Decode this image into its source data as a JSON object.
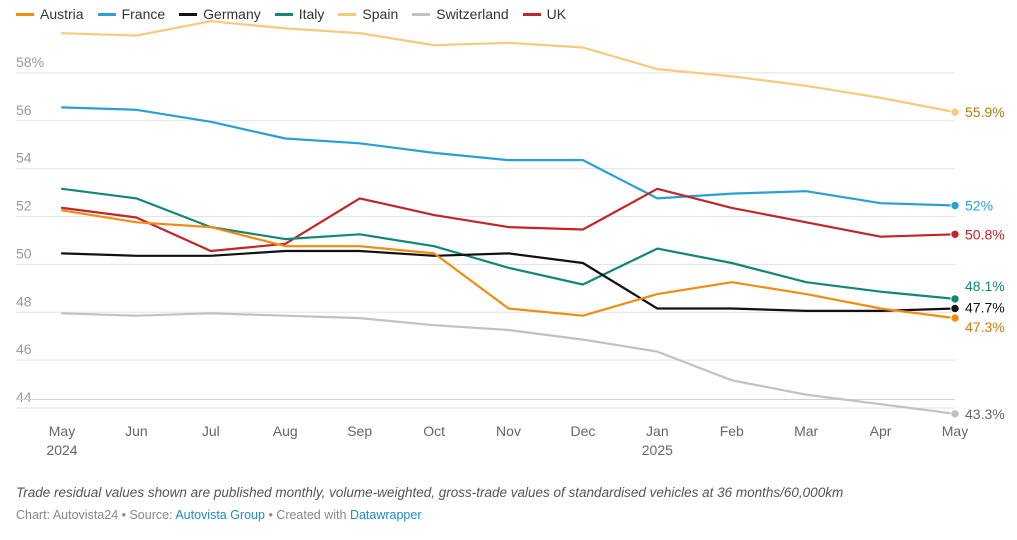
{
  "legend": [
    {
      "name": "Austria",
      "color": "#f28c0f"
    },
    {
      "name": "France",
      "color": "#27a1d4"
    },
    {
      "name": "Germany",
      "color": "#111111"
    },
    {
      "name": "Italy",
      "color": "#138675"
    },
    {
      "name": "Spain",
      "color": "#f7c978"
    },
    {
      "name": "Switzerland",
      "color": "#c1c1c1"
    },
    {
      "name": "UK",
      "color": "#c22528"
    }
  ],
  "chart_data": {
    "type": "line",
    "x_ticks": [
      "May",
      "Jun",
      "Jul",
      "Aug",
      "Sep",
      "Oct",
      "Nov",
      "Dec",
      "Jan",
      "Feb",
      "Mar",
      "Apr",
      "May"
    ],
    "x_years": {
      "0": "2024",
      "8": "2025"
    },
    "y_ticks": [
      "58%",
      "56",
      "54",
      "52",
      "50",
      "48",
      "46",
      "44"
    ],
    "ylim": [
      43,
      59.5
    ],
    "grid": true,
    "legend_position": "top-left",
    "series": [
      {
        "name": "Spain",
        "color": "#f7c978",
        "end_label": "55.9%",
        "label_color": "#b07b16",
        "values": [
          59.2,
          59.1,
          59.7,
          59.4,
          59.2,
          58.7,
          58.8,
          58.6,
          57.7,
          57.4,
          57.0,
          56.5,
          55.9
        ]
      },
      {
        "name": "France",
        "color": "#27a1d4",
        "end_label": "52%",
        "label_color": "#27a1d4",
        "values": [
          56.1,
          56.0,
          55.5,
          54.8,
          54.6,
          54.2,
          53.9,
          53.9,
          52.3,
          52.5,
          52.6,
          52.1,
          52.0
        ]
      },
      {
        "name": "UK",
        "color": "#c22528",
        "end_label": "50.8%",
        "label_color": "#c22528",
        "values": [
          51.9,
          51.5,
          50.1,
          50.4,
          52.3,
          51.6,
          51.1,
          51.0,
          52.7,
          51.9,
          51.3,
          50.7,
          50.8
        ]
      },
      {
        "name": "Italy",
        "color": "#138675",
        "end_label": "48.1%",
        "label_color": "#138675",
        "values": [
          52.7,
          52.3,
          51.1,
          50.6,
          50.8,
          50.3,
          49.4,
          48.7,
          50.2,
          49.6,
          48.8,
          48.4,
          48.1
        ]
      },
      {
        "name": "Germany",
        "color": "#111111",
        "end_label": "47.7%",
        "label_color": "#111111",
        "values": [
          50.0,
          49.9,
          49.9,
          50.1,
          50.1,
          49.9,
          50.0,
          49.6,
          47.7,
          47.7,
          47.6,
          47.6,
          47.7
        ]
      },
      {
        "name": "Austria",
        "color": "#f28c0f",
        "end_label": "47.3%",
        "label_color": "#d9780b",
        "values": [
          51.8,
          51.3,
          51.1,
          50.3,
          50.3,
          50.0,
          47.7,
          47.4,
          48.3,
          48.8,
          48.3,
          47.7,
          47.3
        ]
      },
      {
        "name": "Switzerland",
        "color": "#c1c1c1",
        "end_label": "43.3%",
        "label_color": "#666666",
        "values": [
          47.5,
          47.4,
          47.5,
          47.4,
          47.3,
          47.0,
          46.8,
          46.4,
          45.9,
          44.7,
          44.1,
          43.7,
          43.3
        ]
      }
    ]
  },
  "footer": {
    "note": "Trade residual values shown are published monthly, volume-weighted, gross-trade values of standardised vehicles at 36 months/60,000km",
    "credit_prefix": "Chart: Autovista24 • Source: ",
    "source_link": "Autovista Group",
    "credit_mid": " • Created with ",
    "tool_link": "Datawrapper"
  }
}
